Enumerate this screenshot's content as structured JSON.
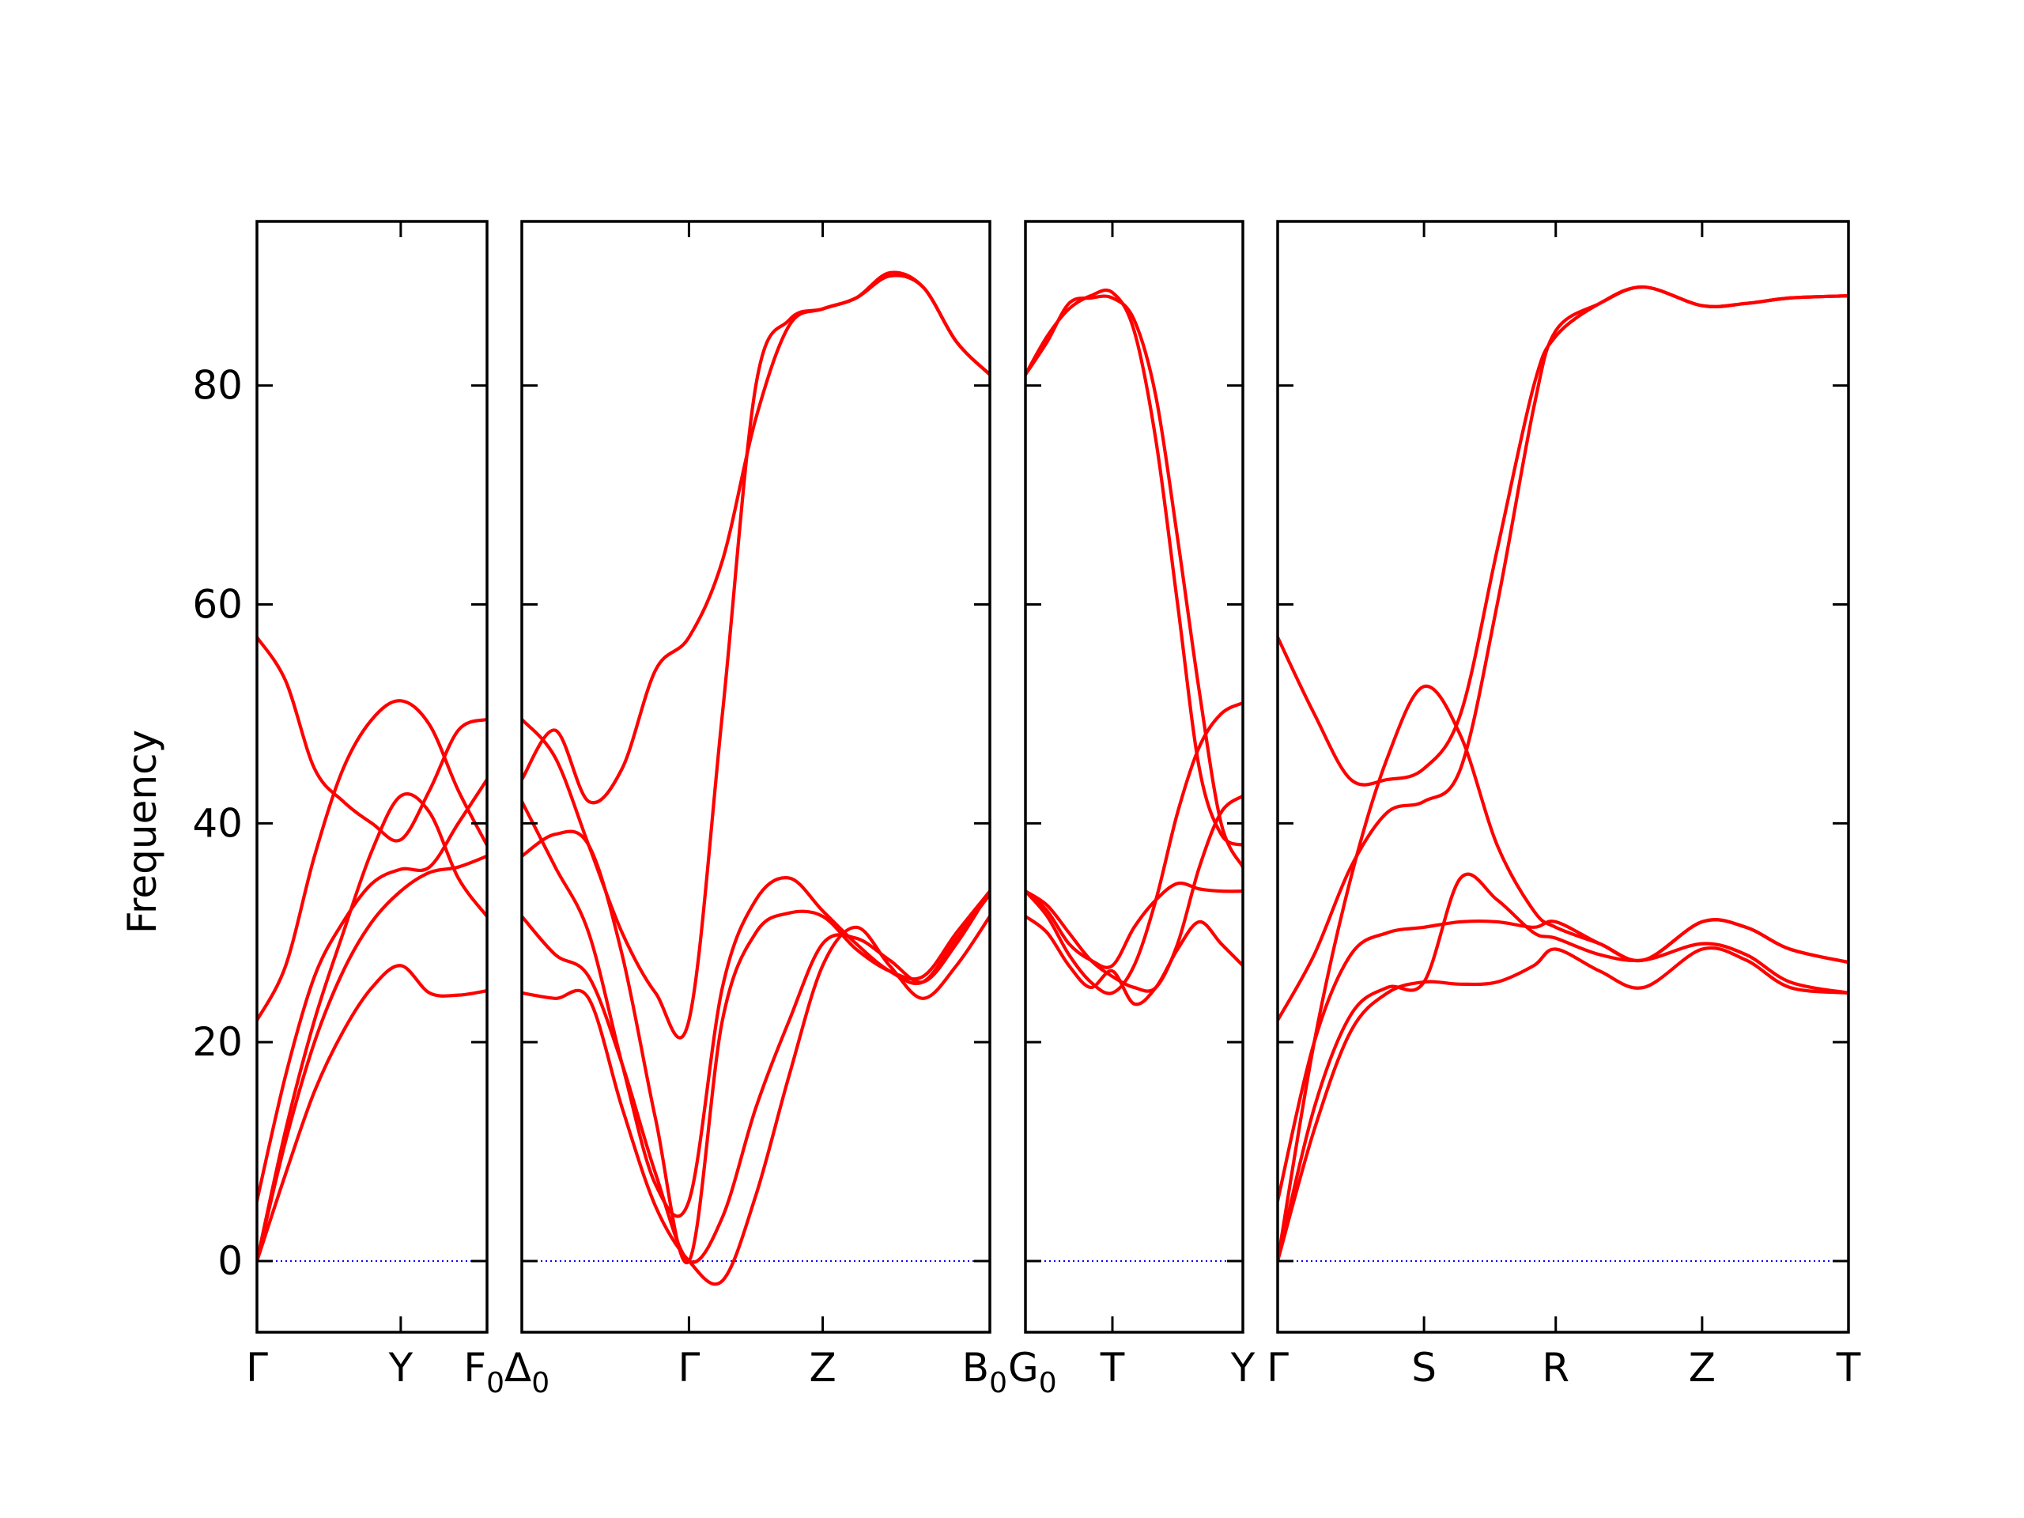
{
  "chart_data": {
    "type": "line",
    "ylabel": "Frequency",
    "ylim": [
      -6.5,
      95
    ],
    "yticks": [
      0,
      20,
      40,
      60,
      80
    ],
    "colors": {
      "bands": "#ff0000",
      "zero_line": "#0000ff",
      "frame": "#000000"
    },
    "panels": [
      {
        "xlim": [
          0,
          1.6
        ],
        "ticks": [
          {
            "x": 0,
            "label": "Γ"
          },
          {
            "x": 1,
            "label": "Y"
          },
          {
            "x": 1.6,
            "label": "F",
            "sub": "0"
          }
        ],
        "x": [
          0,
          0.2,
          0.4,
          0.6,
          0.8,
          1.0,
          1.2,
          1.4,
          1.6
        ],
        "series": [
          [
            0.0,
            8.0,
            15.5,
            21.0,
            25.0,
            27.0,
            24.5,
            24.3,
            24.7
          ],
          [
            0.0,
            11.0,
            20.0,
            26.5,
            31.0,
            33.8,
            35.5,
            36.0,
            37.0
          ],
          [
            5.5,
            17.0,
            26.0,
            31.0,
            34.5,
            35.8,
            36.0,
            40.0,
            44.0
          ],
          [
            0.0,
            12.0,
            22.0,
            30.0,
            37.5,
            42.5,
            41.0,
            35.0,
            31.5
          ],
          [
            22.0,
            27.0,
            37.0,
            45.0,
            49.5,
            51.2,
            49.0,
            43.0,
            38.0
          ],
          [
            57.0,
            53.0,
            45.0,
            42.0,
            40.0,
            38.5,
            43.0,
            48.5,
            49.5
          ]
        ]
      },
      {
        "xlim": [
          0,
          2.8
        ],
        "ticks": [
          {
            "x": 0,
            "label": "Δ",
            "sub": "0"
          },
          {
            "x": 1,
            "label": "Γ"
          },
          {
            "x": 1.8,
            "label": "Z"
          },
          {
            "x": 2.8,
            "label": "B",
            "sub": "0"
          }
        ],
        "x": [
          0,
          0.2,
          0.4,
          0.6,
          0.8,
          1.0,
          1.2,
          1.4,
          1.6,
          1.8,
          2.0,
          2.2,
          2.4,
          2.6,
          2.8
        ],
        "series": [
          [
            24.5,
            24.0,
            24.0,
            14.0,
            5.0,
            0.0,
            -1.8,
            6.0,
            17.0,
            27.0,
            30.5,
            27.0,
            24.0,
            27.0,
            31.5
          ],
          [
            31.5,
            28.0,
            26.0,
            18.0,
            8.0,
            0.0,
            4.0,
            14.0,
            22.0,
            29.0,
            29.5,
            27.5,
            25.5,
            29.0,
            33.8
          ],
          [
            37.0,
            39.0,
            38.0,
            28.0,
            13.0,
            0.0,
            22.0,
            30.0,
            31.8,
            31.5,
            28.5,
            26.5,
            26.0,
            30.0,
            33.8
          ],
          [
            42.0,
            36.0,
            30.0,
            18.0,
            7.0,
            5.5,
            25.0,
            33.0,
            35.0,
            32.0,
            29.0,
            26.5,
            25.5,
            29.5,
            33.5
          ],
          [
            49.5,
            46.0,
            38.0,
            30.0,
            24.5,
            22.0,
            50.0,
            80.0,
            86.0,
            87.0,
            88.0,
            90.0,
            89.0,
            84.0,
            81.0
          ],
          [
            44.0,
            48.5,
            42.0,
            45.0,
            54.0,
            57.0,
            64.0,
            77.0,
            85.5,
            87.0,
            88.0,
            90.3,
            89.0,
            84.0,
            81.0
          ]
        ]
      },
      {
        "xlim": [
          0,
          1.5
        ],
        "ticks": [
          {
            "x": 0,
            "label": "G",
            "sub": "0"
          },
          {
            "x": 0.6,
            "label": "T"
          },
          {
            "x": 1.5,
            "label": "Y"
          }
        ],
        "x": [
          0,
          0.15,
          0.3,
          0.45,
          0.6,
          0.75,
          0.9,
          1.05,
          1.2,
          1.35,
          1.5
        ],
        "series": [
          [
            31.5,
            30.0,
            27.0,
            25.0,
            26.5,
            23.5,
            25.0,
            28.5,
            31.0,
            29.0,
            27.0
          ],
          [
            33.8,
            32.0,
            29.0,
            27.5,
            27.0,
            30.5,
            33.0,
            34.5,
            34.0,
            33.8,
            33.8
          ],
          [
            33.8,
            32.5,
            30.0,
            27.5,
            26.0,
            25.0,
            25.0,
            29.0,
            36.0,
            41.0,
            42.5
          ],
          [
            81.0,
            84.0,
            87.5,
            88.0,
            88.0,
            86.0,
            79.0,
            66.0,
            52.0,
            40.0,
            36.0
          ],
          [
            81.0,
            84.5,
            87.0,
            88.2,
            88.5,
            85.0,
            75.0,
            60.0,
            45.0,
            39.0,
            38.0
          ],
          [
            33.8,
            31.5,
            28.0,
            25.5,
            24.5,
            27.0,
            33.0,
            41.0,
            47.0,
            50.0,
            51.0
          ]
        ]
      },
      {
        "xlim": [
          0,
          3.9
        ],
        "ticks": [
          {
            "x": 0,
            "label": "Γ"
          },
          {
            "x": 1,
            "label": "S"
          },
          {
            "x": 1.9,
            "label": "R"
          },
          {
            "x": 2.9,
            "label": "Z"
          },
          {
            "x": 3.9,
            "label": "T"
          }
        ],
        "x": [
          0,
          0.25,
          0.5,
          0.75,
          1.0,
          1.25,
          1.5,
          1.75,
          1.9,
          2.2,
          2.5,
          2.9,
          3.2,
          3.5,
          3.9
        ],
        "series": [
          [
            0.0,
            12.0,
            21.0,
            24.5,
            25.5,
            25.3,
            25.5,
            27.0,
            28.5,
            26.5,
            25.0,
            28.5,
            27.5,
            25.0,
            24.5
          ],
          [
            0.0,
            14.0,
            22.5,
            25.0,
            25.5,
            35.0,
            33.0,
            30.0,
            29.5,
            28.0,
            27.5,
            29.0,
            28.0,
            25.5,
            24.5
          ],
          [
            5.5,
            20.0,
            28.0,
            30.0,
            30.5,
            31.0,
            31.0,
            30.5,
            31.0,
            29.0,
            27.5,
            31.0,
            30.5,
            28.5,
            27.3
          ],
          [
            22.0,
            28.0,
            36.0,
            41.0,
            42.0,
            45.0,
            60.0,
            78.0,
            85.0,
            87.5,
            89.0,
            87.3,
            87.5,
            88.0,
            88.2
          ],
          [
            0.0,
            20.0,
            35.0,
            46.0,
            52.5,
            48.0,
            38.0,
            32.0,
            30.5,
            29.0,
            27.5,
            31.0,
            30.5,
            28.5,
            27.3
          ],
          [
            57.0,
            50.0,
            44.0,
            44.0,
            45.0,
            50.0,
            65.0,
            80.0,
            84.5,
            87.5,
            89.0,
            87.3,
            87.5,
            88.0,
            88.2
          ]
        ]
      }
    ]
  }
}
